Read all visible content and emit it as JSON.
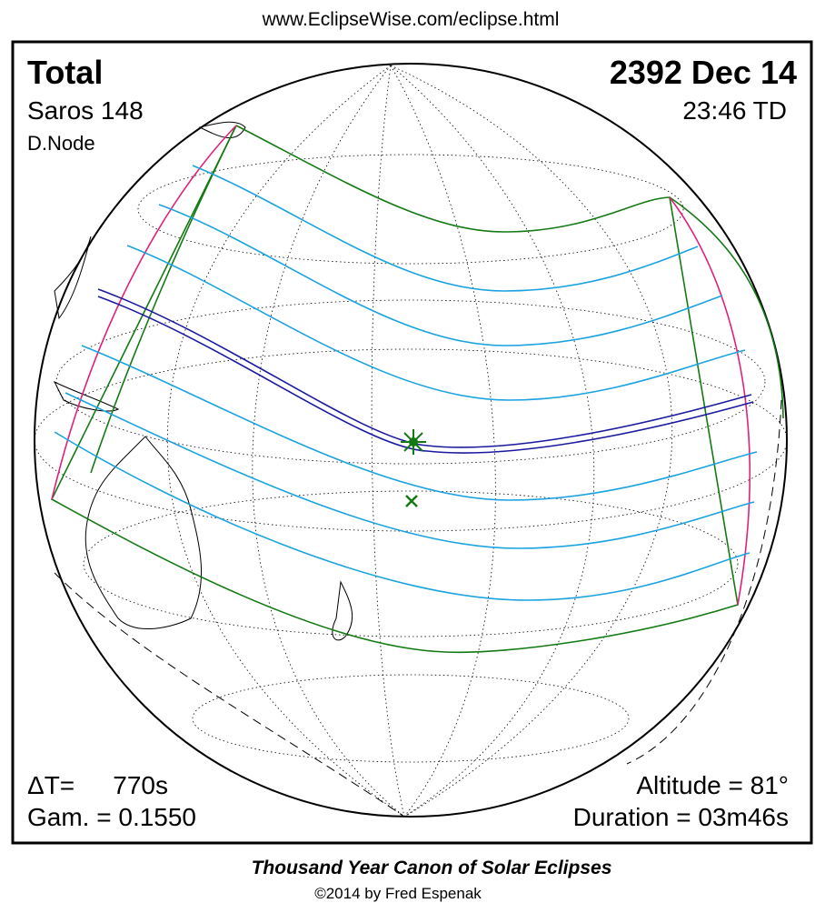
{
  "header": {
    "url": "www.EclipseWise.com/eclipse.html"
  },
  "eclipse": {
    "type": "Total",
    "saros": "Saros 148",
    "node": "D.Node",
    "date": "2392 Dec 14",
    "time": "23:46 TD"
  },
  "parameters": {
    "delta_t_label": "ΔT=",
    "delta_t": "770s",
    "gamma": "Gam. = 0.1550",
    "altitude": "Altitude = 81°",
    "duration": "Duration = 03m46s"
  },
  "footer": {
    "title": "Thousand Year Canon of Solar Eclipses",
    "copyright": "©2014 by Fred Espenak"
  }
}
